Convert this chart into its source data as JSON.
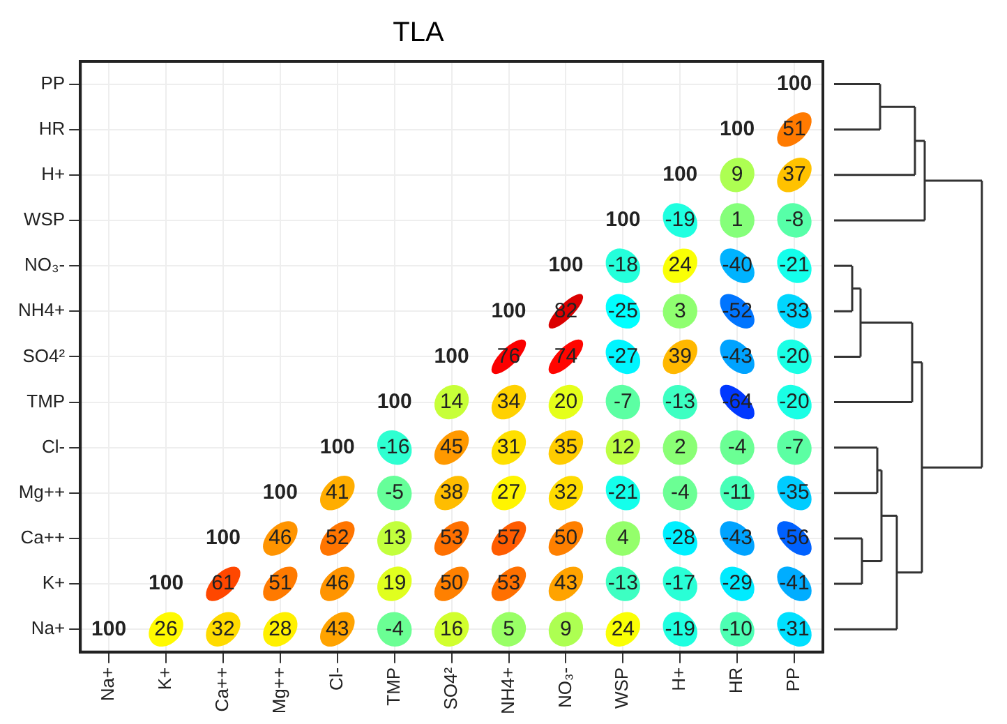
{
  "chart_data": {
    "type": "heatmap",
    "title": "TLA",
    "categories": [
      "Na+",
      "K+",
      "Ca++",
      "Mg++",
      "Cl-",
      "TMP",
      "SO4²",
      "NH4+",
      "NO₃-",
      "WSP",
      "H+",
      "HR",
      "PP"
    ],
    "y_categories": [
      "PP",
      "HR",
      "H+",
      "WSP",
      "NO₃-",
      "NH4+",
      "SO4²",
      "TMP",
      "Cl-",
      "Mg++",
      "Ca++",
      "K+",
      "Na+"
    ],
    "cells": [
      [
        null,
        null,
        null,
        null,
        null,
        null,
        null,
        null,
        null,
        null,
        null,
        null,
        100
      ],
      [
        null,
        null,
        null,
        null,
        null,
        null,
        null,
        null,
        null,
        null,
        null,
        100,
        51
      ],
      [
        null,
        null,
        null,
        null,
        null,
        null,
        null,
        null,
        null,
        null,
        100,
        9,
        37
      ],
      [
        null,
        null,
        null,
        null,
        null,
        null,
        null,
        null,
        null,
        100,
        -19,
        1,
        -8
      ],
      [
        null,
        null,
        null,
        null,
        null,
        null,
        null,
        null,
        100,
        -18,
        24,
        -40,
        -21
      ],
      [
        null,
        null,
        null,
        null,
        null,
        null,
        null,
        100,
        82,
        -25,
        3,
        -52,
        -33
      ],
      [
        null,
        null,
        null,
        null,
        null,
        null,
        100,
        76,
        74,
        -27,
        39,
        -43,
        -20
      ],
      [
        null,
        null,
        null,
        null,
        null,
        100,
        14,
        34,
        20,
        -7,
        -13,
        -64,
        -20
      ],
      [
        null,
        null,
        null,
        null,
        100,
        -16,
        45,
        31,
        35,
        12,
        2,
        -4,
        -7
      ],
      [
        null,
        null,
        null,
        100,
        41,
        -5,
        38,
        27,
        32,
        -21,
        -4,
        -11,
        -35
      ],
      [
        null,
        null,
        100,
        46,
        52,
        13,
        53,
        57,
        50,
        4,
        -28,
        -43,
        -56
      ],
      [
        null,
        100,
        61,
        51,
        46,
        19,
        50,
        53,
        43,
        -13,
        -17,
        -29,
        -41
      ],
      [
        100,
        26,
        32,
        28,
        43,
        -4,
        16,
        5,
        9,
        24,
        -19,
        -10,
        -31
      ]
    ],
    "data_labels": true,
    "grid": true
  }
}
